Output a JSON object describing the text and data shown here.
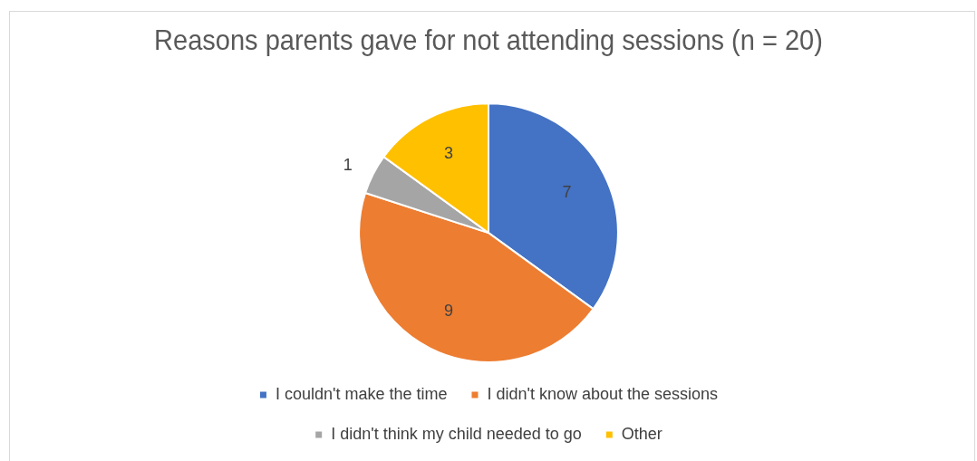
{
  "chart_data": {
    "type": "pie",
    "title": "Reasons parents gave for not attending sessions (n = 20)",
    "categories": [
      "I couldn't make the time",
      "I didn't know about the sessions",
      "I didn't think my child needed to go",
      "Other"
    ],
    "values": [
      7,
      9,
      1,
      3
    ],
    "colors": [
      "#4472c4",
      "#ed7d31",
      "#a5a5a5",
      "#ffc000"
    ],
    "data_labels": true,
    "legend": "bottom"
  }
}
